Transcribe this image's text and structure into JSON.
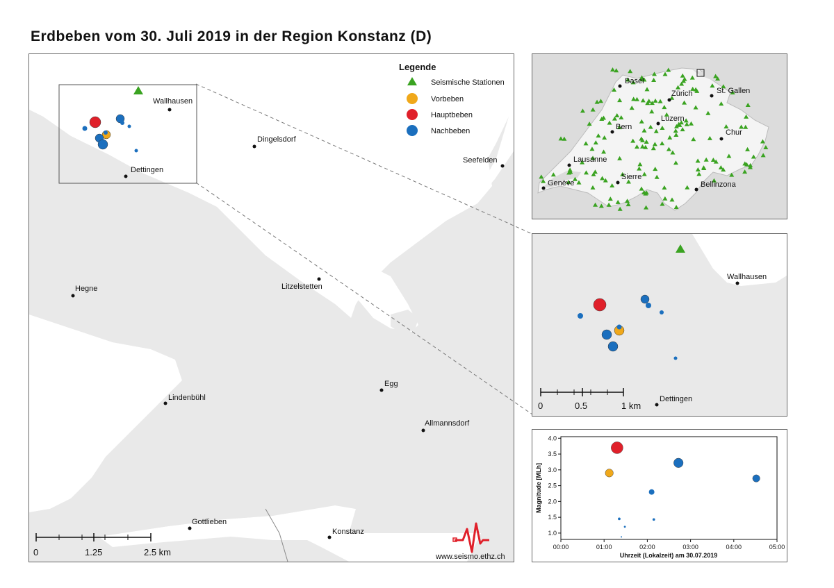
{
  "title": "Erdbeben vom 30. Juli 2019 in der Region Konstanz (D)",
  "colors": {
    "station": "#3aa321",
    "foreshock": "#f0a81a",
    "mainshock": "#e0202a",
    "aftershock": "#1b6fbe",
    "land": "#e9e9e9",
    "water": "#ffffff",
    "logo": "#e0202a"
  },
  "legend": {
    "title": "Legende",
    "items": [
      {
        "label": "Seismische Stationen",
        "icon": "triangle-icon"
      },
      {
        "label": "Vorbeben",
        "icon": "circle-icon"
      },
      {
        "label": "Hauptbeben",
        "icon": "circle-icon"
      },
      {
        "label": "Nachbeben",
        "icon": "circle-icon"
      }
    ]
  },
  "main_map": {
    "places": [
      "Wallhausen",
      "Dingelsdorf",
      "Seefelden",
      "Dettingen",
      "Hegne",
      "Litzelstetten",
      "Egg",
      "Lindenbühl",
      "Allmannsdorf",
      "Gottlieben",
      "Konstanz"
    ],
    "scalebar": {
      "labels": [
        "0",
        "1.25",
        "2.5 km"
      ]
    },
    "credit": "www.seismo.ethz.ch"
  },
  "swiss_map": {
    "cities": [
      "Basel",
      "Zürich",
      "St. Gallen",
      "Bern",
      "Luzern",
      "Chur",
      "Lausanne",
      "Genève",
      "Sierre",
      "Bellinzona"
    ]
  },
  "zoom_map": {
    "places": [
      "Wallhausen",
      "Dettingen"
    ],
    "scalebar": {
      "labels": [
        "0",
        "0.5",
        "1 km"
      ]
    }
  },
  "chart_data": {
    "type": "scatter",
    "xlabel": "Uhrzeit (Lokalzeit) am 30.07.2019",
    "ylabel": "Magnitude [MLh]",
    "xticks": [
      "00:00",
      "01:00",
      "02:00",
      "03:00",
      "04:00",
      "05:00"
    ],
    "yticks": [
      "1.0",
      "1.5",
      "2.0",
      "2.5",
      "3.0",
      "3.5",
      "4.0"
    ],
    "xlim_hours": [
      0,
      5
    ],
    "ylim": [
      0.8,
      4.05
    ],
    "series": [
      {
        "name": "Vorbeben",
        "points": [
          {
            "t": 1.12,
            "m": 2.9
          }
        ]
      },
      {
        "name": "Hauptbeben",
        "points": [
          {
            "t": 1.3,
            "m": 3.7
          }
        ]
      },
      {
        "name": "Nachbeben",
        "points": [
          {
            "t": 1.35,
            "m": 1.45
          },
          {
            "t": 1.4,
            "m": 0.88
          },
          {
            "t": 1.48,
            "m": 1.2
          },
          {
            "t": 2.1,
            "m": 2.3
          },
          {
            "t": 2.15,
            "m": 1.43
          },
          {
            "t": 2.72,
            "m": 3.22
          },
          {
            "t": 4.52,
            "m": 2.73
          }
        ]
      }
    ]
  }
}
